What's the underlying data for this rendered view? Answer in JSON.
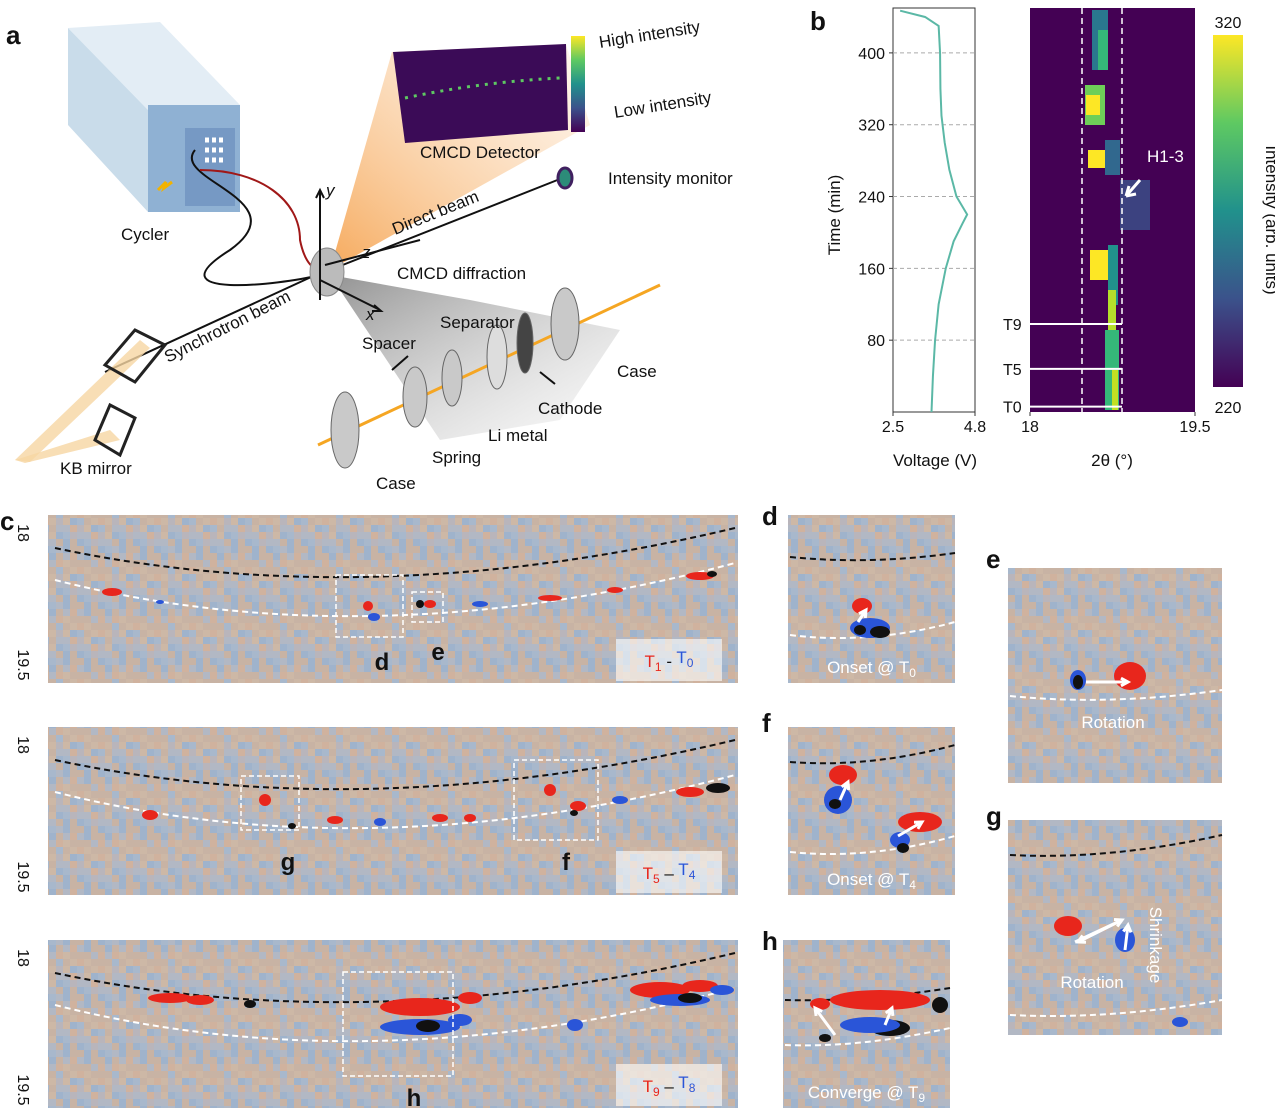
{
  "panel_labels": [
    "a",
    "b",
    "c",
    "d",
    "e",
    "f",
    "g",
    "h"
  ],
  "schematic": {
    "cycler": "Cycler",
    "synchrotron_beam": "Synchrotron beam",
    "kb_mirror": "KB mirror",
    "detector": "CMCD Detector",
    "high_intensity": "High intensity",
    "low_intensity": "Low intensity",
    "intensity_monitor": "Intensity monitor",
    "direct_beam": "Direct beam",
    "diffraction": "CMCD diffraction",
    "separator": "Separator",
    "spacer": "Spacer",
    "cathode": "Cathode",
    "case_right": "Case",
    "li_metal": "Li metal",
    "spring": "Spring",
    "case_left": "Case",
    "axis_x": "x",
    "axis_y": "y",
    "axis_z": "z"
  },
  "chart_data": [
    {
      "type": "line",
      "xlabel": "Voltage (V)",
      "ylabel": "Time (min)",
      "orientation": "vertical-time",
      "x": [
        0,
        40,
        80,
        120,
        160,
        190,
        210,
        220,
        240,
        270,
        300,
        330,
        360,
        400,
        430,
        440,
        447
      ],
      "values": [
        3.58,
        3.62,
        3.68,
        3.78,
        3.98,
        4.2,
        4.45,
        4.58,
        4.28,
        4.08,
        3.95,
        3.86,
        3.83,
        3.82,
        3.78,
        3.4,
        2.7
      ],
      "color": "#5bb8a6",
      "xlim": [
        2.5,
        4.8
      ],
      "xticks": [
        2.5,
        4.8
      ],
      "ylim": [
        0,
        450
      ],
      "yticks": [
        80,
        160,
        240,
        320,
        400
      ],
      "grid": true
    },
    {
      "type": "heatmap",
      "xlabel": "2θ (°)",
      "xlim": [
        18,
        19.5
      ],
      "xticks": [
        18,
        19.5
      ],
      "ylim": [
        0,
        450
      ],
      "colorbar": {
        "label": "Intensity (arb. units)",
        "clim": [
          220,
          320
        ],
        "cticks": [
          220,
          320
        ]
      },
      "markers": [
        {
          "label": "T9",
          "time": 98
        },
        {
          "label": "T5",
          "time": 48
        },
        {
          "label": "T0",
          "time": 6
        }
      ],
      "annotation": "H1-3"
    }
  ],
  "difference_maps": [
    {
      "two_theta_ticks": [
        18,
        19.5
      ],
      "minuend": "T",
      "minuend_sub": "1",
      "operator": " - ",
      "subtrahend": "T",
      "subtrahend_sub": "0",
      "boxes": [
        "d",
        "e"
      ]
    },
    {
      "two_theta_ticks": [
        18,
        19.5
      ],
      "minuend": "T",
      "minuend_sub": "5",
      "operator": " – ",
      "subtrahend": "T",
      "subtrahend_sub": "4",
      "boxes": [
        "g",
        "f"
      ]
    },
    {
      "two_theta_ticks": [
        18,
        19.5
      ],
      "minuend": "T",
      "minuend_sub": "9",
      "operator": " – ",
      "subtrahend": "T",
      "subtrahend_sub": "8",
      "boxes": [
        "h"
      ]
    }
  ],
  "zooms": {
    "d": {
      "caption": "Onset @ T",
      "caption_sub": "0"
    },
    "f": {
      "caption": "Onset @ T",
      "caption_sub": "4"
    },
    "h": {
      "caption": "Converge @ T",
      "caption_sub": "9"
    },
    "e": {
      "caption": "Rotation"
    },
    "g": {
      "caption": "Rotation",
      "note": "Shrinkage"
    }
  }
}
